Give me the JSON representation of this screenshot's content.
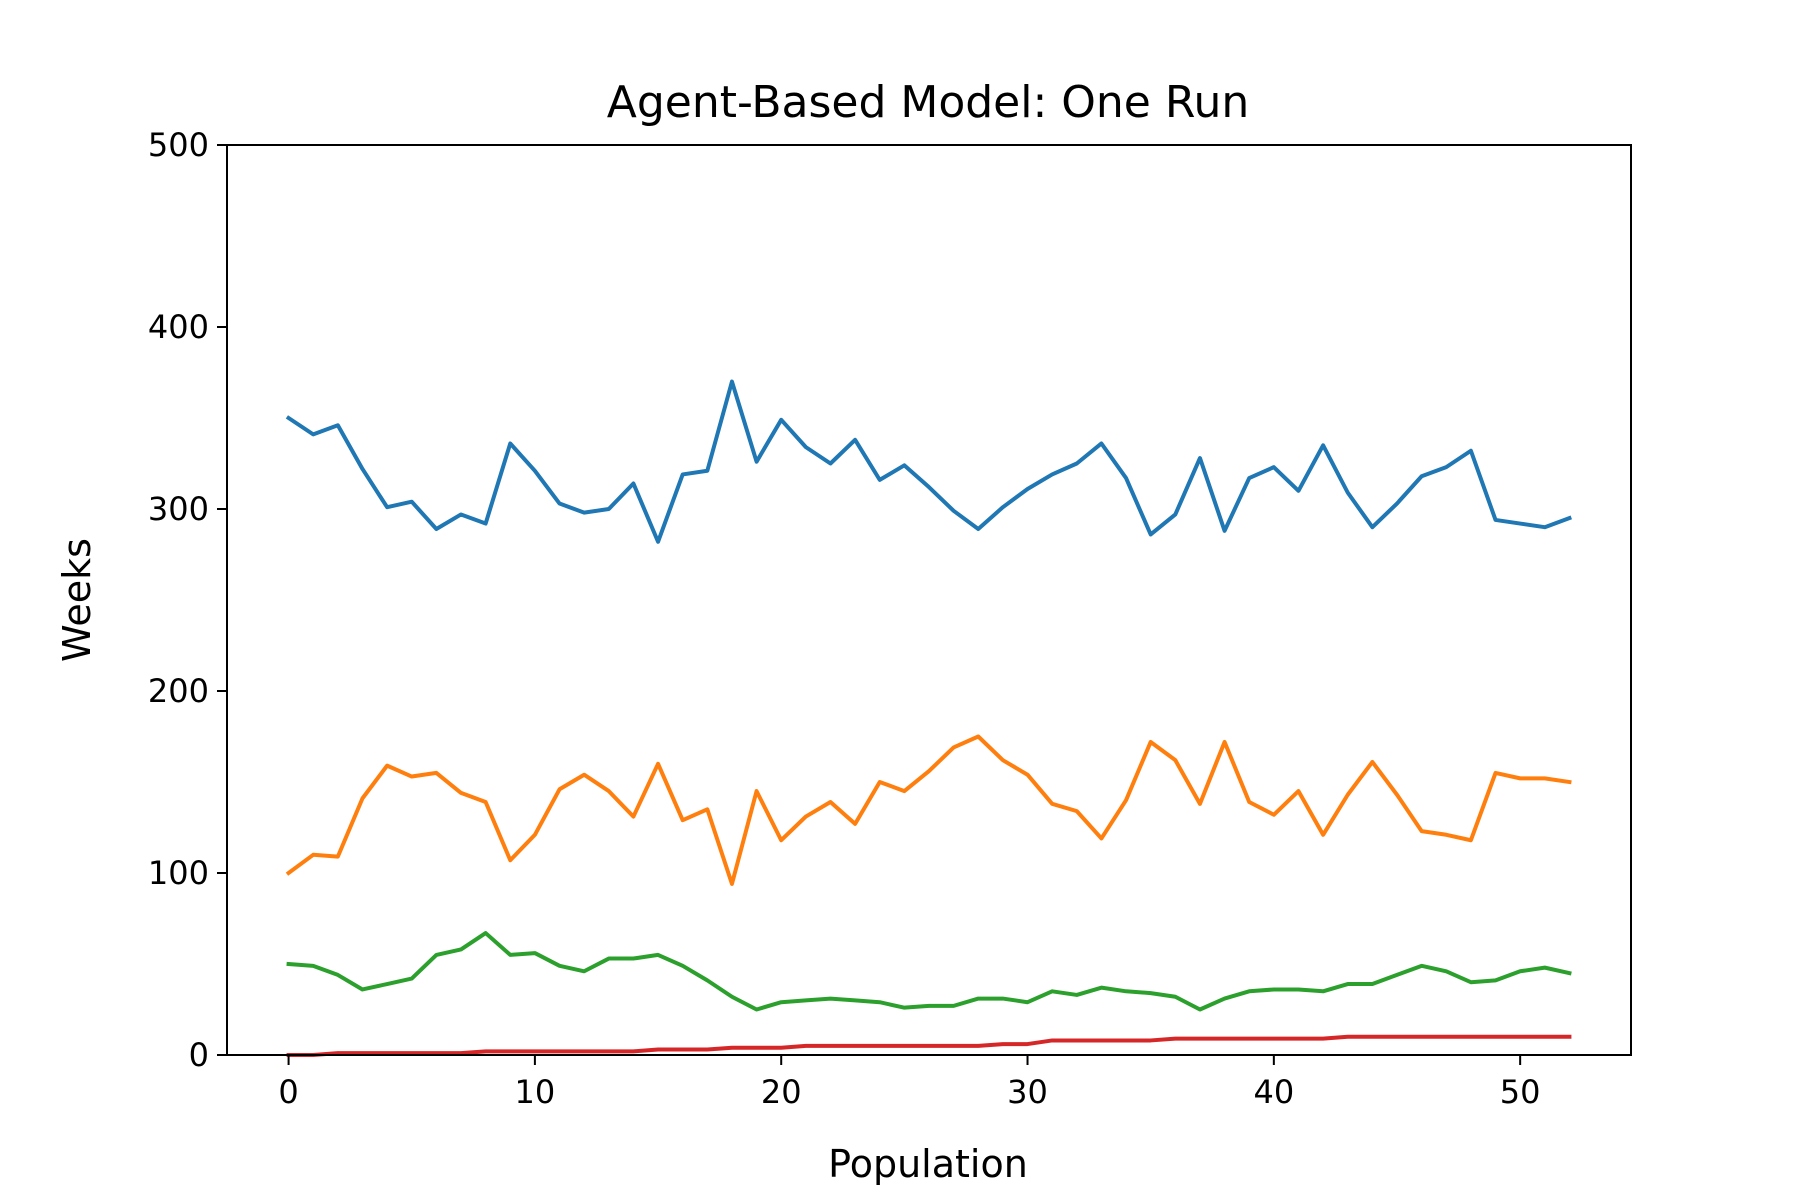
{
  "chart_data": {
    "type": "line",
    "title": "Agent-Based Model: One Run",
    "xlabel": "Population",
    "ylabel": "Weeks",
    "xlim": [
      -2.5,
      54.5
    ],
    "ylim": [
      0,
      500
    ],
    "xticks": [
      0,
      10,
      20,
      30,
      40,
      50
    ],
    "yticks": [
      0,
      100,
      200,
      300,
      400,
      500
    ],
    "grid": false,
    "legend": "none",
    "x_start": 0,
    "series": [
      {
        "color": "#1f77b4",
        "values": [
          350,
          341,
          346,
          322,
          301,
          304,
          289,
          297,
          292,
          336,
          321,
          303,
          298,
          300,
          314,
          282,
          319,
          321,
          370,
          326,
          349,
          334,
          325,
          338,
          316,
          324,
          312,
          299,
          289,
          301,
          311,
          319,
          325,
          336,
          317,
          286,
          297,
          328,
          288,
          317,
          323,
          310,
          335,
          309,
          290,
          303,
          318,
          323,
          332,
          294,
          292,
          290,
          295
        ]
      },
      {
        "color": "#ff7f0e",
        "values": [
          100,
          110,
          109,
          141,
          159,
          153,
          155,
          144,
          139,
          107,
          121,
          146,
          154,
          145,
          131,
          160,
          129,
          135,
          94,
          145,
          118,
          131,
          139,
          127,
          150,
          145,
          156,
          169,
          175,
          162,
          154,
          138,
          134,
          119,
          140,
          172,
          162,
          138,
          172,
          139,
          132,
          145,
          121,
          143,
          161,
          143,
          123,
          121,
          118,
          155,
          152,
          152,
          150
        ]
      },
      {
        "color": "#2ca02c",
        "values": [
          50,
          49,
          44,
          36,
          39,
          42,
          55,
          58,
          67,
          55,
          56,
          49,
          46,
          53,
          53,
          55,
          49,
          41,
          32,
          25,
          29,
          30,
          31,
          30,
          29,
          26,
          27,
          27,
          31,
          31,
          29,
          35,
          33,
          37,
          35,
          34,
          32,
          25,
          31,
          35,
          36,
          36,
          35,
          39,
          39,
          44,
          49,
          46,
          40,
          41,
          46,
          48,
          45
        ]
      },
      {
        "color": "#d62728",
        "values": [
          0,
          0,
          1,
          1,
          1,
          1,
          1,
          1,
          2,
          2,
          2,
          2,
          2,
          2,
          2,
          3,
          3,
          3,
          4,
          4,
          4,
          5,
          5,
          5,
          5,
          5,
          5,
          5,
          5,
          6,
          6,
          8,
          8,
          8,
          8,
          8,
          9,
          9,
          9,
          9,
          9,
          9,
          9,
          10,
          10,
          10,
          10,
          10,
          10,
          10,
          10,
          10,
          10
        ]
      }
    ]
  }
}
